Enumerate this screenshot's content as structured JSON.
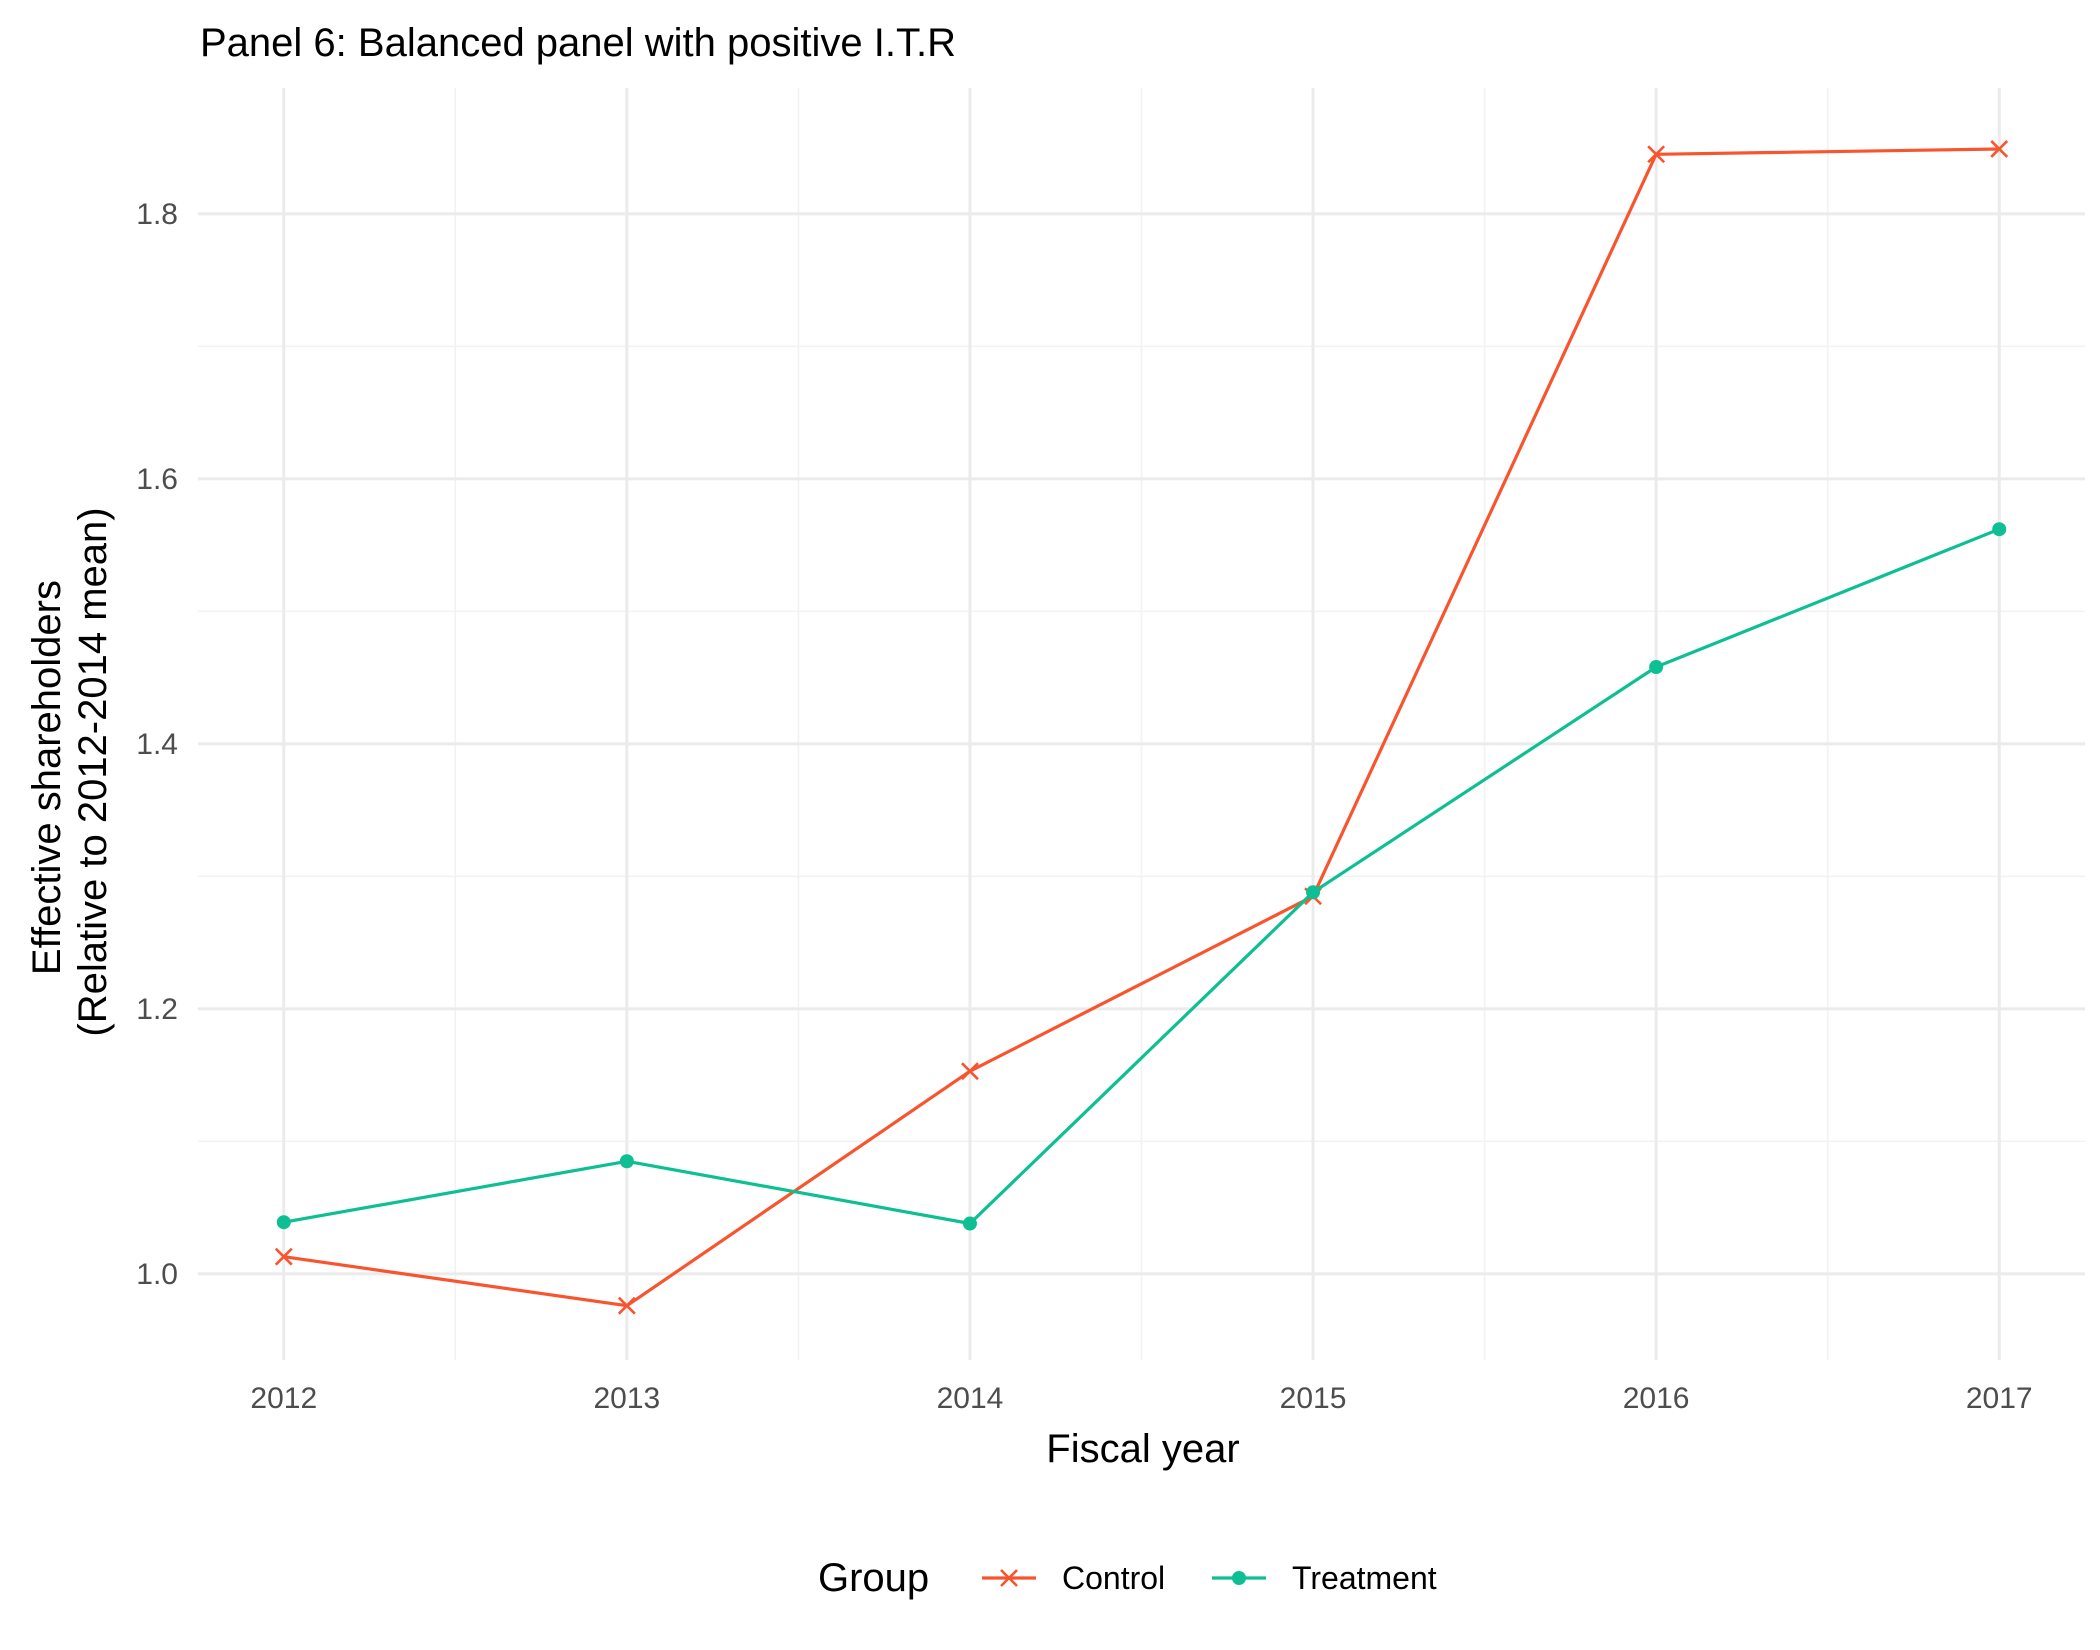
{
  "chart_data": {
    "type": "line",
    "title": "Panel 6: Balanced panel with positive I.T.R",
    "xlabel": "Fiscal year",
    "ylabel": [
      "Effective shareholders",
      "(Relative to 2012-2014 mean)"
    ],
    "x": [
      2012,
      2013,
      2014,
      2015,
      2016,
      2017
    ],
    "x_tick_labels": [
      "2012",
      "2013",
      "2014",
      "2015",
      "2016",
      "2017"
    ],
    "y_ticks": [
      1.0,
      1.2,
      1.4,
      1.6,
      1.8
    ],
    "y_tick_labels": [
      "1.0",
      "1.2",
      "1.4",
      "1.6",
      "1.8"
    ],
    "xlim": [
      2011.75,
      2017.25
    ],
    "ylim": [
      0.935,
      1.895
    ],
    "grid": true,
    "legend": {
      "title": "Group",
      "position": "bottom"
    },
    "series": [
      {
        "name": "Control",
        "color": "#F8552E",
        "marker": "x-icon",
        "values": [
          1.013,
          0.976,
          1.153,
          1.285,
          1.845,
          1.849
        ]
      },
      {
        "name": "Treatment",
        "color": "#0DBF92",
        "marker": "dot-icon",
        "values": [
          1.039,
          1.085,
          1.038,
          1.288,
          1.458,
          1.562
        ]
      }
    ]
  }
}
